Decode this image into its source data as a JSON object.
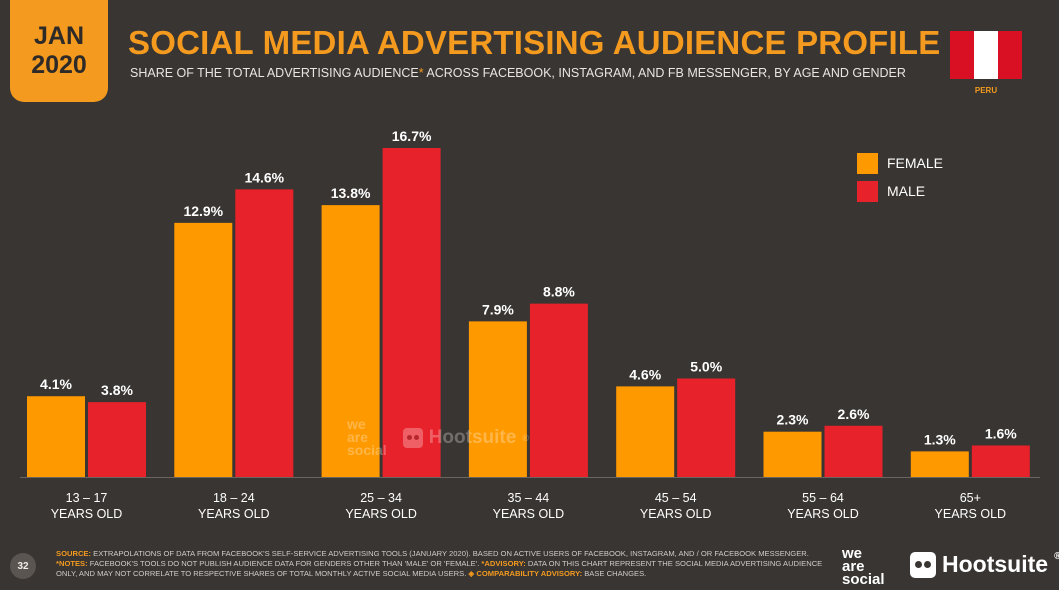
{
  "header": {
    "month": "JAN",
    "year": "2020",
    "title": "SOCIAL MEDIA ADVERTISING AUDIENCE PROFILE",
    "subtitle_before": "SHARE OF THE TOTAL ADVERTISING AUDIENCE",
    "subtitle_asterisk": "*",
    "subtitle_after": " ACROSS FACEBOOK, INSTAGRAM, AND FB MESSENGER, BY AGE AND GENDER",
    "country": "PERU"
  },
  "colors": {
    "accent": "#f39a1f",
    "female": "#ff9900",
    "male": "#e8222a",
    "background": "#393532"
  },
  "footer": {
    "page_number": "32",
    "source_label": "SOURCE:",
    "source_text": " EXTRAPOLATIONS OF DATA FROM FACEBOOK'S SELF-SERVICE ADVERTISING TOOLS (JANUARY 2020). BASED ON ACTIVE USERS OF FACEBOOK, INSTAGRAM, AND / OR FACEBOOK MESSENGER. ",
    "notes_label": "*NOTES:",
    "notes_text": " FACEBOOK'S TOOLS DO NOT PUBLISH AUDIENCE DATA FOR GENDERS OTHER THAN 'MALE' OR 'FEMALE'. ",
    "advisory_label": "*ADVISORY:",
    "advisory_text": " DATA ON THIS CHART REPRESENT THE SOCIAL MEDIA ADVERTISING AUDIENCE ONLY, AND MAY NOT CORRELATE TO RESPECTIVE SHARES OF TOTAL MONTHLY ACTIVE SOCIAL MEDIA USERS. ",
    "comparability_label": "◈ COMPARABILITY ADVISORY:",
    "comparability_text": " BASE CHANGES.",
    "logo_was": [
      "we",
      "are",
      "social"
    ],
    "logo_hootsuite": "Hootsuite",
    "logo_hootsuite_mark": "®"
  },
  "watermark": {
    "was": [
      "we",
      "are",
      "social"
    ],
    "hootsuite": "Hootsuite",
    "hootsuite_mark": "®"
  },
  "chart_data": {
    "type": "bar",
    "categories": [
      [
        "13 – 17",
        "YEARS OLD"
      ],
      [
        "18 – 24",
        "YEARS OLD"
      ],
      [
        "25 – 34",
        "YEARS OLD"
      ],
      [
        "35 – 44",
        "YEARS OLD"
      ],
      [
        "45 – 54",
        "YEARS OLD"
      ],
      [
        "55 – 64",
        "YEARS OLD"
      ],
      [
        "65+",
        "YEARS OLD"
      ]
    ],
    "series": [
      {
        "name": "FEMALE",
        "color": "#ff9900",
        "values": [
          4.1,
          12.9,
          13.8,
          7.9,
          4.6,
          2.3,
          1.3
        ],
        "labels": [
          "4.1%",
          "12.9%",
          "13.8%",
          "7.9%",
          "4.6%",
          "2.3%",
          "1.3%"
        ]
      },
      {
        "name": "MALE",
        "color": "#e8222a",
        "values": [
          3.8,
          14.6,
          16.7,
          8.8,
          5.0,
          2.6,
          1.6
        ],
        "labels": [
          "3.8%",
          "14.6%",
          "16.7%",
          "8.8%",
          "5.0%",
          "2.6%",
          "1.6%"
        ]
      }
    ],
    "ylim": [
      0,
      16.7
    ],
    "legend": "top-right",
    "grid": false
  }
}
